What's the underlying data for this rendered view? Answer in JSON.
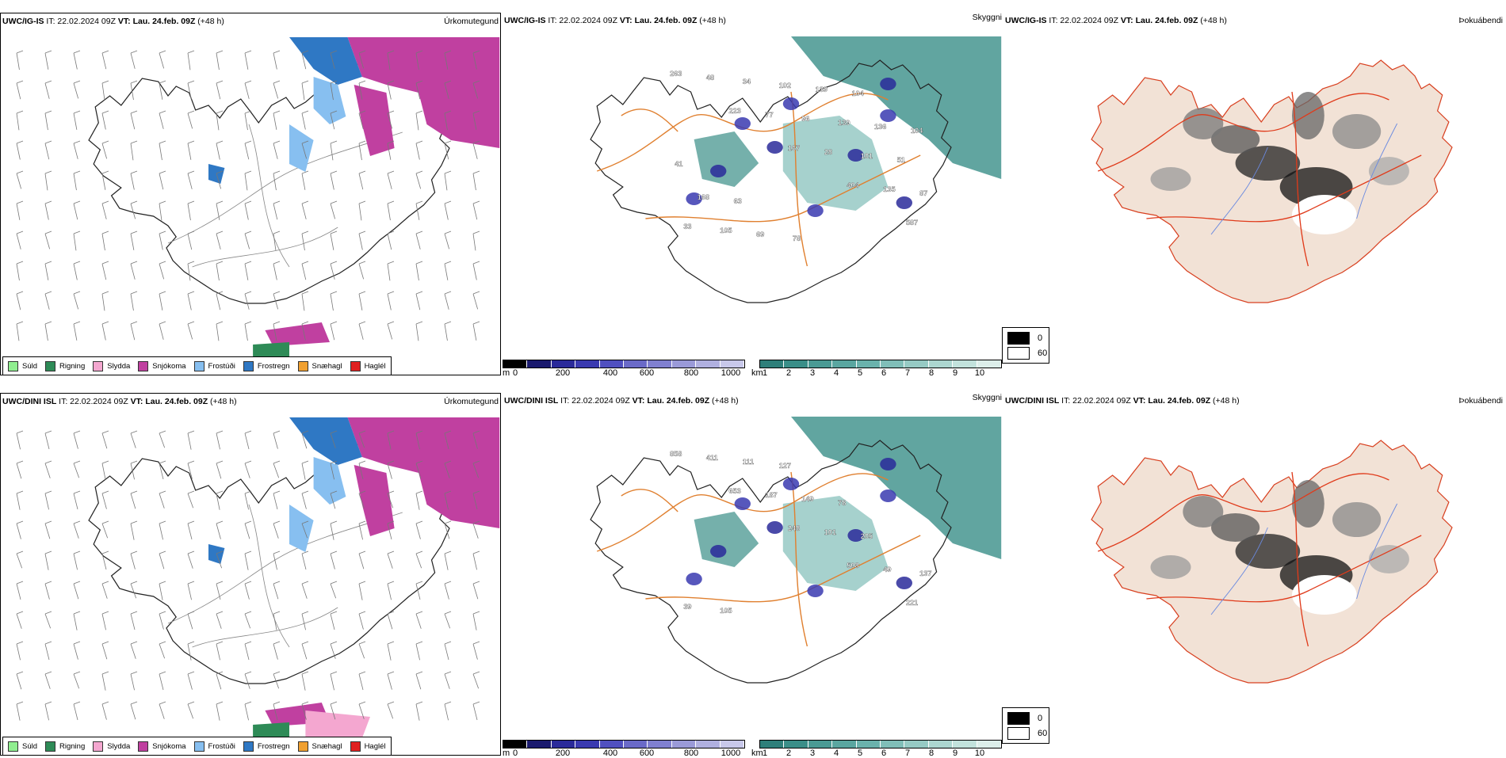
{
  "rows": [
    {
      "model": "UWC/IG-IS",
      "it": "IT: 22.02.2024 09Z",
      "vt_label": "VT:",
      "vt_value": "Lau. 24.feb. 09Z",
      "lead": "(+48 h)",
      "labels_cloud": [
        "263",
        "223",
        "167",
        "404",
        "587",
        "48",
        "77",
        "28",
        "135",
        "33",
        "34",
        "96",
        "101",
        "87",
        "105",
        "102",
        "139",
        "51",
        "168",
        "69",
        "139",
        "136",
        "41",
        "63",
        "78",
        "104",
        "104"
      ]
    },
    {
      "model": "UWC/DINI ISL",
      "it": "IT: 22.02.2024 09Z",
      "vt_label": "VT:",
      "vt_value": "Lau. 24.feb. 09Z",
      "lead": "(+48 h)",
      "labels_cloud": [
        "858",
        "653",
        "248",
        "508",
        "221",
        "411",
        "187",
        "101",
        "49",
        "39",
        "111",
        "149",
        "205",
        "137",
        "105",
        "127",
        "78"
      ]
    }
  ],
  "panel_names": {
    "precip": "Úrkomutegund",
    "cloud": "Skyggni",
    "fog": "Þokuábendi"
  },
  "precip_legend": [
    {
      "label": "Súld",
      "color": "#90ee90"
    },
    {
      "label": "Rigning",
      "color": "#2e8b57"
    },
    {
      "label": "Slydda",
      "color": "#f4a7d0"
    },
    {
      "label": "Snjókoma",
      "color": "#c040a0"
    },
    {
      "label": "Frostúði",
      "color": "#87bff0"
    },
    {
      "label": "Frostregn",
      "color": "#2f78c4"
    },
    {
      "label": "Snæhagl",
      "color": "#f0a030"
    },
    {
      "label": "Haglél",
      "color": "#e02020"
    }
  ],
  "colorbar_m": {
    "unit": "m",
    "ticks": [
      "0",
      "200",
      "400",
      "600",
      "800",
      "1000"
    ],
    "colors": [
      "#000000",
      "#1a1a6e",
      "#2a2a9a",
      "#3a3ab0",
      "#5050c0",
      "#6a6ac8",
      "#8080d0",
      "#9a9ad8",
      "#b0b0e0",
      "#c8c8ea"
    ]
  },
  "colorbar_km": {
    "unit": "km",
    "ticks": [
      "1",
      "2",
      "3",
      "4",
      "5",
      "6",
      "7",
      "8",
      "9",
      "10"
    ],
    "colors": [
      "#2e7f7a",
      "#3a8e88",
      "#4a9a94",
      "#5aa6a0",
      "#6ab2ac",
      "#80beb8",
      "#96cac4",
      "#acd6d0",
      "#c2e2dc",
      "#dceeea"
    ]
  },
  "fog_legend": {
    "items": [
      "0",
      "60"
    ],
    "colors": [
      "#000000",
      "#ffffff"
    ]
  }
}
